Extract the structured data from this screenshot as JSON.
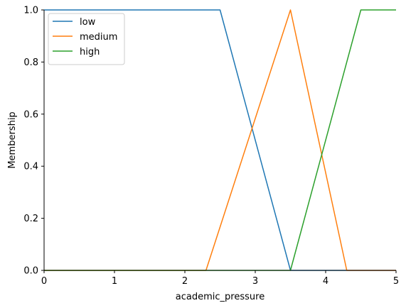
{
  "chart_data": {
    "type": "line",
    "title": "",
    "xlabel": "academic_pressure",
    "ylabel": "Membership",
    "xlim": [
      0,
      5
    ],
    "ylim": [
      0,
      1
    ],
    "x_ticks": [
      "0",
      "1",
      "2",
      "3",
      "4",
      "5"
    ],
    "y_ticks": [
      "0.0",
      "0.2",
      "0.4",
      "0.6",
      "0.8",
      "1.0"
    ],
    "grid": false,
    "legend_position": "upper-left",
    "series": [
      {
        "name": "low",
        "color": "#1f77b4",
        "x": [
          0,
          2.5,
          3.5,
          5
        ],
        "y": [
          1,
          1,
          0,
          0
        ]
      },
      {
        "name": "medium",
        "color": "#ff7f0e",
        "x": [
          0,
          2.3,
          3.5,
          4.3,
          5
        ],
        "y": [
          0,
          0,
          1,
          0,
          0
        ]
      },
      {
        "name": "high",
        "color": "#2ca02c",
        "x": [
          0,
          3.5,
          4.5,
          5
        ],
        "y": [
          0,
          0,
          1,
          1
        ]
      }
    ]
  }
}
